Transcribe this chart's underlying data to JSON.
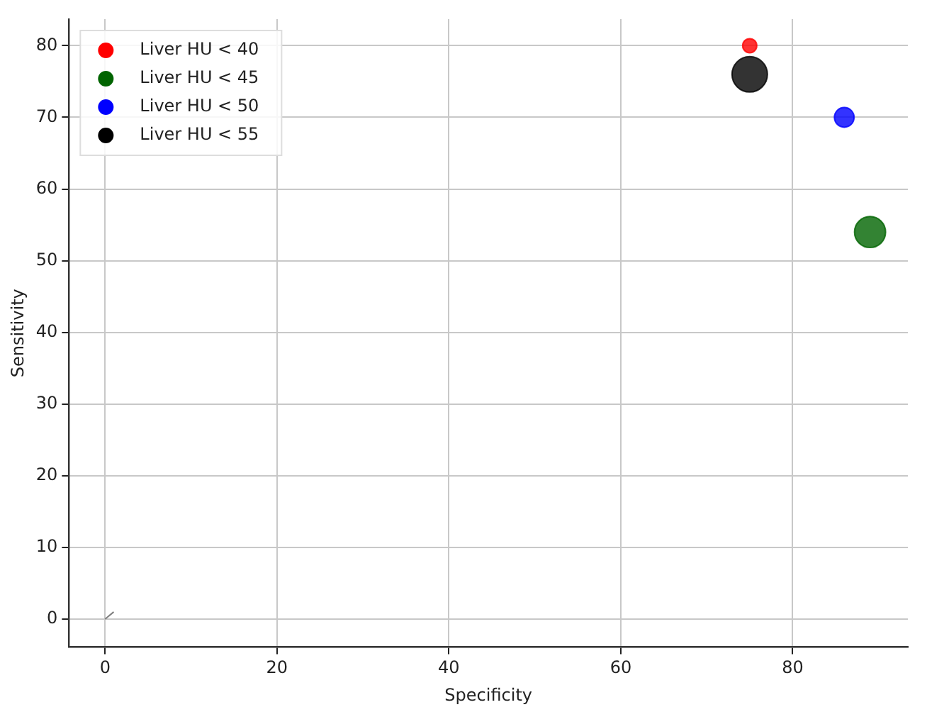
{
  "chart_data": {
    "type": "bubble",
    "xlabel": "Specificity",
    "ylabel": "Sensitivity",
    "xlim": [
      -4.2,
      93.4
    ],
    "ylim": [
      -3.9,
      83.7
    ],
    "xticks": [
      0,
      20,
      40,
      60,
      80
    ],
    "yticks": [
      0,
      10,
      20,
      30,
      40,
      50,
      60,
      70,
      80
    ],
    "grid": true,
    "legend": "top left",
    "marker": "circle",
    "series": [
      {
        "name": "Liver HU < 40",
        "color": "#ff0000",
        "x": [
          75
        ],
        "values": [
          80
        ],
        "sizes": [
          0.16
        ]
      },
      {
        "name": "Liver HU < 45",
        "color": "#006400",
        "x": [
          89
        ],
        "values": [
          54
        ],
        "sizes": [
          0.77
        ]
      },
      {
        "name": "Liver HU < 50",
        "color": "#0000ff",
        "x": [
          86
        ],
        "values": [
          70
        ],
        "sizes": [
          0.31
        ]
      },
      {
        "name": "Liver HU < 55",
        "color": "#000000",
        "x": [
          75
        ],
        "values": [
          76
        ],
        "sizes": [
          1
        ]
      },
      {
        "type": "line",
        "color": "#808080",
        "marker": "none",
        "x": [
          0,
          1
        ],
        "values": [
          0,
          1
        ]
      }
    ]
  }
}
